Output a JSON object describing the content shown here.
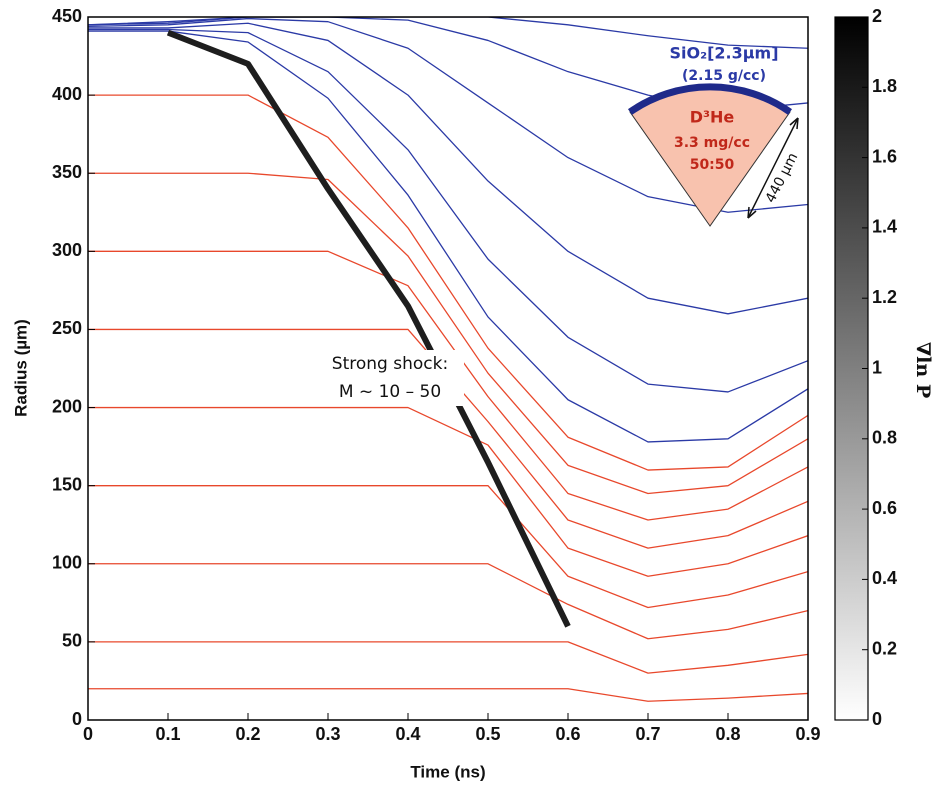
{
  "chart_data": {
    "type": "line",
    "xlabel": "Time (ns)",
    "ylabel": "Radius (µm)",
    "x": [
      0,
      0.1,
      0.2,
      0.3,
      0.4,
      0.5,
      0.6,
      0.7,
      0.8,
      0.9
    ],
    "xlim": [
      0,
      0.9
    ],
    "xticks": [
      0,
      0.1,
      0.2,
      0.3,
      0.4,
      0.5,
      0.6,
      0.7,
      0.8,
      0.9
    ],
    "ylim": [
      0,
      450
    ],
    "yticks": [
      0,
      50,
      100,
      150,
      200,
      250,
      300,
      350,
      400,
      450
    ],
    "series": [
      {
        "color": "#e8482c",
        "values": [
          400,
          400,
          400,
          373,
          315,
          238,
          181,
          160,
          162,
          195
        ]
      },
      {
        "color": "#e8482c",
        "values": [
          350,
          350,
          350,
          346,
          297,
          222,
          163,
          145,
          150,
          180
        ]
      },
      {
        "color": "#e8482c",
        "values": [
          300,
          300,
          300,
          300,
          278,
          207,
          145,
          128,
          135,
          162
        ]
      },
      {
        "color": "#e8482c",
        "values": [
          250,
          250,
          250,
          250,
          250,
          191,
          128,
          110,
          118,
          140
        ]
      },
      {
        "color": "#e8482c",
        "values": [
          200,
          200,
          200,
          200,
          200,
          176,
          110,
          92,
          100,
          118
        ]
      },
      {
        "color": "#e8482c",
        "values": [
          150,
          150,
          150,
          150,
          150,
          150,
          92,
          72,
          80,
          95
        ]
      },
      {
        "color": "#e8482c",
        "values": [
          100,
          100,
          100,
          100,
          100,
          100,
          74,
          52,
          58,
          70
        ]
      },
      {
        "color": "#e8482c",
        "values": [
          50,
          50,
          50,
          50,
          50,
          50,
          50,
          30,
          35,
          42
        ]
      },
      {
        "color": "#e8482c",
        "values": [
          20,
          20,
          20,
          20,
          20,
          20,
          20,
          12,
          14,
          17
        ]
      },
      {
        "color": "#2b3aa6",
        "values": [
          441,
          441,
          434,
          398,
          336,
          258,
          205,
          178,
          180,
          212
        ]
      },
      {
        "color": "#2b3aa6",
        "values": [
          442,
          442,
          440,
          415,
          365,
          295,
          245,
          215,
          210,
          230
        ]
      },
      {
        "color": "#2b3aa6",
        "values": [
          443,
          443,
          446,
          435,
          400,
          345,
          300,
          270,
          260,
          270
        ]
      },
      {
        "color": "#2b3aa6",
        "values": [
          444,
          445,
          449,
          447,
          430,
          395,
          360,
          335,
          325,
          330
        ]
      },
      {
        "color": "#2b3aa6",
        "values": [
          445,
          446,
          450,
          450,
          448,
          435,
          415,
          400,
          390,
          395
        ]
      },
      {
        "color": "#2b3aa6",
        "values": [
          445,
          447,
          450,
          450,
          450,
          450,
          445,
          438,
          432,
          430
        ]
      },
      {
        "color": "#1e1e1e",
        "width": 6,
        "values": [
          null,
          440,
          420,
          340,
          265,
          165,
          60,
          null,
          null,
          null
        ]
      }
    ],
    "colorbar": {
      "label": "∇ln P",
      "lim": [
        0,
        2
      ],
      "ticks": [
        0,
        0.2,
        0.4,
        0.6,
        0.8,
        1,
        1.2,
        1.4,
        1.6,
        1.8,
        2
      ],
      "colors": [
        "#ffffff",
        "#000000"
      ]
    },
    "annotations": [
      "Strong shock:",
      "M ~ 10 – 50"
    ],
    "inset": {
      "shell": "SiO₂[2.3µm]",
      "shell_density": "(2.15 g/cc)",
      "fuel": "D³He",
      "fuel_density": "3.3 mg/cc",
      "ratio": "50:50",
      "radius": "440 µm"
    }
  }
}
